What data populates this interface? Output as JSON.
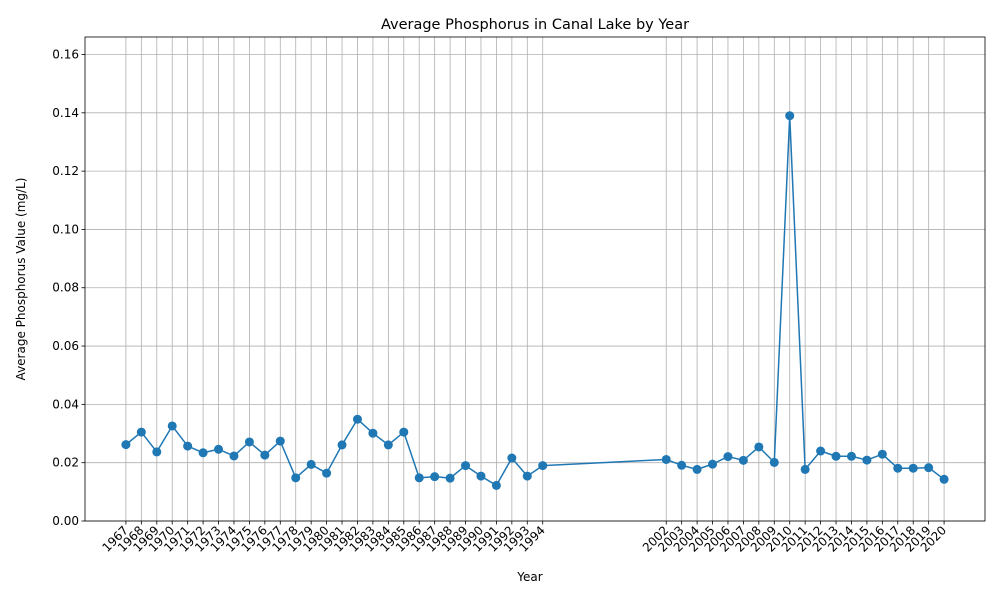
{
  "chart_data": {
    "type": "line",
    "title": "Average Phosphorus in Canal Lake by Year",
    "xlabel": "Year",
    "ylabel": "Average Phosphorus Value (mg/L)",
    "ylim": [
      0,
      0.166
    ],
    "yticks": [
      0.0,
      0.02,
      0.04,
      0.06,
      0.08,
      0.1,
      0.12,
      0.14,
      0.16
    ],
    "grid": true,
    "legend": "none",
    "line_color": "#1f77b4",
    "marker": "circle",
    "x": [
      1967,
      1968,
      1969,
      1970,
      1971,
      1972,
      1973,
      1974,
      1975,
      1976,
      1977,
      1978,
      1979,
      1980,
      1981,
      1982,
      1983,
      1984,
      1985,
      1986,
      1987,
      1988,
      1989,
      1990,
      1991,
      1992,
      1993,
      1994,
      2002,
      2003,
      2004,
      2005,
      2006,
      2007,
      2008,
      2009,
      2010,
      2011,
      2012,
      2013,
      2014,
      2015,
      2016,
      2017,
      2018,
      2019,
      2020
    ],
    "values": [
      0.0262,
      0.0305,
      0.0237,
      0.0326,
      0.0257,
      0.0234,
      0.0246,
      0.0223,
      0.0271,
      0.0226,
      0.0274,
      0.0148,
      0.0194,
      0.0164,
      0.0261,
      0.0349,
      0.0301,
      0.0261,
      0.0305,
      0.0148,
      0.0152,
      0.0147,
      0.019,
      0.0154,
      0.0122,
      0.0216,
      0.0154,
      0.019,
      0.0211,
      0.0191,
      0.0177,
      0.0195,
      0.0221,
      0.0208,
      0.0254,
      0.0201,
      0.139,
      0.0177,
      0.024,
      0.0222,
      0.0222,
      0.0209,
      0.0229,
      0.0181,
      0.0181,
      0.0183,
      0.0143
    ]
  }
}
